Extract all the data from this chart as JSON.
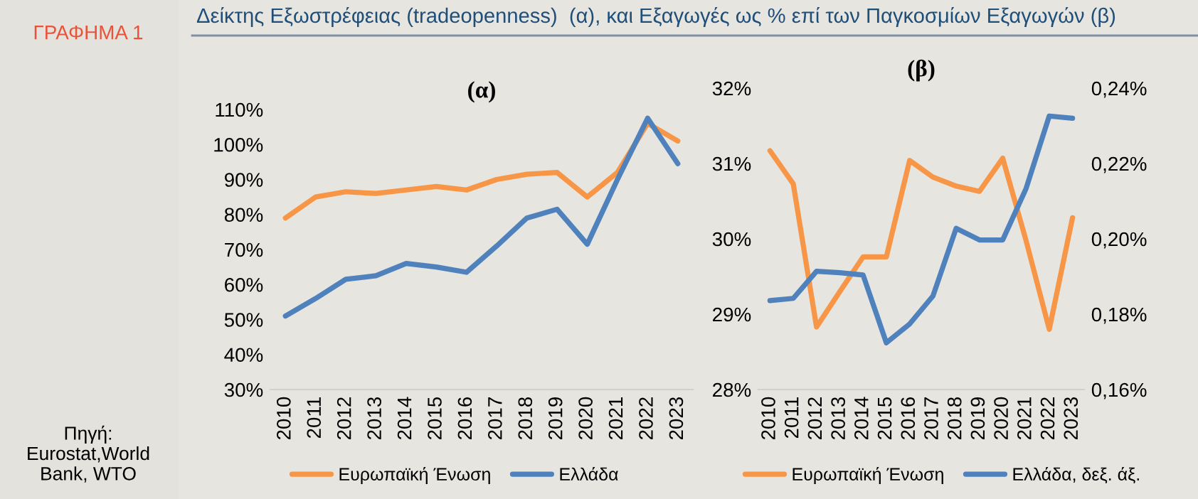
{
  "chart_data": [
    {
      "type": "line",
      "title": "(α)",
      "categories": [
        "2010",
        "2011",
        "2012",
        "2013",
        "2014",
        "2015",
        "2016",
        "2017",
        "2018",
        "2019",
        "2020",
        "2021",
        "2022",
        "2023"
      ],
      "series": [
        {
          "name": "Ευρωπαϊκή Ένωση",
          "color": "#f79646",
          "values": [
            79,
            85,
            86.5,
            86,
            87,
            88,
            87,
            90,
            91.5,
            92,
            85,
            92,
            106,
            101
          ]
        },
        {
          "name": "Ελλάδα",
          "color": "#4f81bd",
          "values": [
            51,
            56,
            61.5,
            62.5,
            66,
            65,
            63.5,
            71,
            79,
            81.5,
            71.5,
            90,
            107.5,
            94.5
          ]
        }
      ],
      "ylim": [
        30,
        110
      ],
      "yticks": [
        {
          "value": 30,
          "label": "30%"
        },
        {
          "value": 40,
          "label": "40%"
        },
        {
          "value": 50,
          "label": "50%"
        },
        {
          "value": 60,
          "label": "60%"
        },
        {
          "value": 70,
          "label": "70%"
        },
        {
          "value": 80,
          "label": "80%"
        },
        {
          "value": 90,
          "label": "90%"
        },
        {
          "value": 100,
          "label": "100%"
        },
        {
          "value": 110,
          "label": "110%"
        }
      ],
      "legend": "bottom",
      "grid": false,
      "marker": "none",
      "line_style": "solid",
      "annotations": [
        "ΓΡΑΦΗΜΑ 1",
        "Δείκτης Εξωστρέφειας (tradeopenness)  (α), και Εξαγωγές ως % επί των Παγκοσμίων Εξαγωγών (β)",
        "Πηγή: Eurostat,World Bank, WTO"
      ]
    },
    {
      "type": "line",
      "title": "(β)",
      "categories": [
        "2010",
        "2011",
        "2012",
        "2013",
        "2014",
        "2015",
        "2016",
        "2017",
        "2018",
        "2019",
        "2020",
        "2021",
        "2022",
        "2023"
      ],
      "series": [
        {
          "name": "Ευρωπαϊκή Ένωση",
          "color": "#f79646",
          "values": [
            31.17,
            30.73,
            28.83,
            29.3,
            29.76,
            29.76,
            31.04,
            30.82,
            30.7,
            30.63,
            31.07,
            29.98,
            28.8,
            30.28
          ]
        },
        {
          "name": "Ελλάδα, δεξ. άξ.",
          "color": "#4f81bd",
          "axis": "y2",
          "values": [
            0.1836,
            0.1842,
            0.1914,
            0.191,
            0.1904,
            0.1724,
            0.1774,
            0.1848,
            0.2028,
            0.1997,
            0.1997,
            0.2133,
            0.2326,
            0.232
          ]
        }
      ],
      "ylim": [
        28,
        32
      ],
      "yticks": [
        {
          "value": 28,
          "label": "28%"
        },
        {
          "value": 29,
          "label": "29%"
        },
        {
          "value": 30,
          "label": "30%"
        },
        {
          "value": 31,
          "label": "31%"
        },
        {
          "value": 32,
          "label": "32%"
        }
      ],
      "y2lim": [
        0.16,
        0.24
      ],
      "y2ticks": [
        {
          "value": 0.16,
          "label": "0,16%"
        },
        {
          "value": 0.18,
          "label": "0,18%"
        },
        {
          "value": 0.2,
          "label": "0,20%"
        },
        {
          "value": 0.22,
          "label": "0,22%"
        },
        {
          "value": 0.24,
          "label": "0,24%"
        }
      ],
      "legend": "bottom",
      "grid": false,
      "marker": "none",
      "line_style": "solid"
    }
  ]
}
